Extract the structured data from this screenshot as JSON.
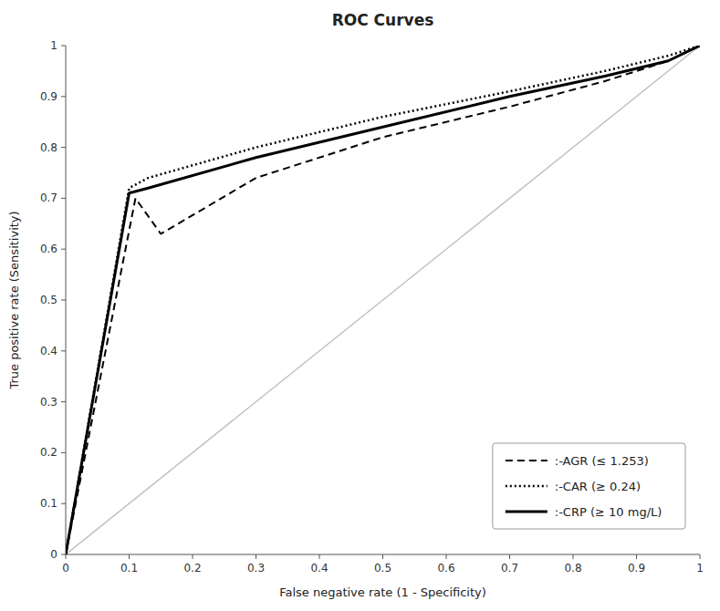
{
  "chart_data": {
    "type": "line",
    "title": "ROC Curves",
    "x_label": "False negative rate (1 - Specificity)",
    "y_label": "True positive rate (Sensitivity)",
    "xlim": [
      0,
      1
    ],
    "ylim": [
      0,
      1
    ],
    "xticks": [
      0,
      0.1,
      0.2,
      0.3,
      0.4,
      0.5,
      0.6,
      0.7,
      0.8,
      0.9,
      1
    ],
    "yticks": [
      0,
      0.1,
      0.2,
      0.3,
      0.4,
      0.5,
      0.6,
      0.7,
      0.8,
      0.9,
      1
    ],
    "grid": false,
    "legend": "lower right",
    "series": [
      {
        "name": ":-AGR (≤ 1.253)",
        "color": "#000000",
        "line_style": "dashed",
        "x": [
          0,
          0.11,
          0.15,
          0.3,
          0.5,
          0.7,
          0.85,
          0.95,
          1.0
        ],
        "values": [
          0,
          0.7,
          0.63,
          0.74,
          0.82,
          0.88,
          0.93,
          0.97,
          1.0
        ]
      },
      {
        "name": ":-CAR (≥ 0.24)",
        "color": "#000000",
        "line_style": "dotted",
        "x": [
          0,
          0.1,
          0.13,
          0.3,
          0.5,
          0.7,
          0.85,
          0.95,
          1.0
        ],
        "values": [
          0,
          0.72,
          0.74,
          0.8,
          0.86,
          0.91,
          0.95,
          0.98,
          1.0
        ]
      },
      {
        "name": ":-CRP (≥ 10 mg/L)",
        "color": "#000000",
        "line_style": "solid",
        "x": [
          0,
          0.1,
          0.13,
          0.3,
          0.5,
          0.7,
          0.85,
          0.95,
          1.0
        ],
        "values": [
          0,
          0.71,
          0.72,
          0.78,
          0.84,
          0.9,
          0.94,
          0.97,
          1.0
        ]
      }
    ]
  }
}
